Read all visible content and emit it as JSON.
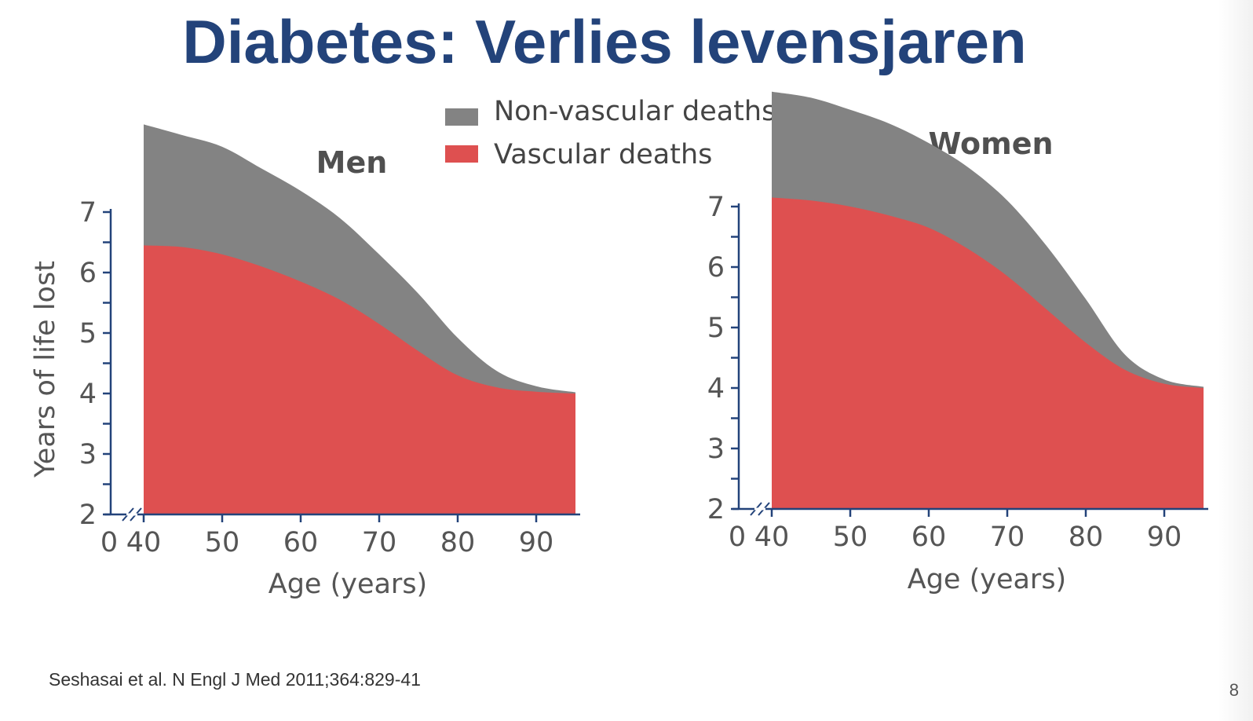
{
  "slide": {
    "title": "Diabetes: Verlies levensjaren",
    "citation": "Seshasai et al. N Engl J Med 2011;364:829-41",
    "page_number": "8"
  },
  "legend": [
    {
      "label": "Non-vascular deaths",
      "color": "#838383"
    },
    {
      "label": "Vascular deaths",
      "color": "#de5050"
    }
  ],
  "chart_data": [
    {
      "type": "area",
      "title": "Men",
      "xlabel": "Age (years)",
      "ylabel": "Years of life lost",
      "x_tick_labels": [
        "0",
        "40",
        "50",
        "60",
        "70",
        "80",
        "90"
      ],
      "y_tick_labels": [
        "2",
        "3",
        "4",
        "5",
        "6",
        "7"
      ],
      "xlim": [
        40,
        95
      ],
      "ylim": [
        2,
        7
      ],
      "axis_break": true,
      "stacked": true,
      "x": [
        40,
        45,
        50,
        55,
        60,
        65,
        70,
        75,
        80,
        85,
        90,
        95
      ],
      "series": [
        {
          "name": "Vascular deaths",
          "values": [
            4.45,
            4.42,
            4.3,
            4.1,
            3.85,
            3.55,
            3.15,
            2.7,
            2.3,
            2.1,
            2.03,
            2.0
          ]
        },
        {
          "name": "Non-vascular deaths",
          "values": [
            2.0,
            1.85,
            1.78,
            1.62,
            1.5,
            1.35,
            1.15,
            0.95,
            0.62,
            0.27,
            0.09,
            0.02
          ]
        }
      ]
    },
    {
      "type": "area",
      "title": "Women",
      "xlabel": "Age (years)",
      "ylabel": "",
      "x_tick_labels": [
        "0",
        "40",
        "50",
        "60",
        "70",
        "80",
        "90"
      ],
      "y_tick_labels": [
        "2",
        "3",
        "4",
        "5",
        "6",
        "7"
      ],
      "xlim": [
        40,
        95
      ],
      "ylim": [
        2,
        7
      ],
      "axis_break": true,
      "stacked": true,
      "x": [
        40,
        45,
        50,
        55,
        60,
        65,
        70,
        75,
        80,
        85,
        90,
        95
      ],
      "series": [
        {
          "name": "Vascular deaths",
          "values": [
            5.15,
            5.1,
            5.0,
            4.85,
            4.65,
            4.3,
            3.85,
            3.3,
            2.75,
            2.3,
            2.07,
            2.0
          ]
        },
        {
          "name": "Non-vascular deaths",
          "values": [
            1.75,
            1.7,
            1.6,
            1.52,
            1.4,
            1.35,
            1.25,
            1.05,
            0.72,
            0.25,
            0.07,
            0.02
          ]
        }
      ]
    }
  ]
}
